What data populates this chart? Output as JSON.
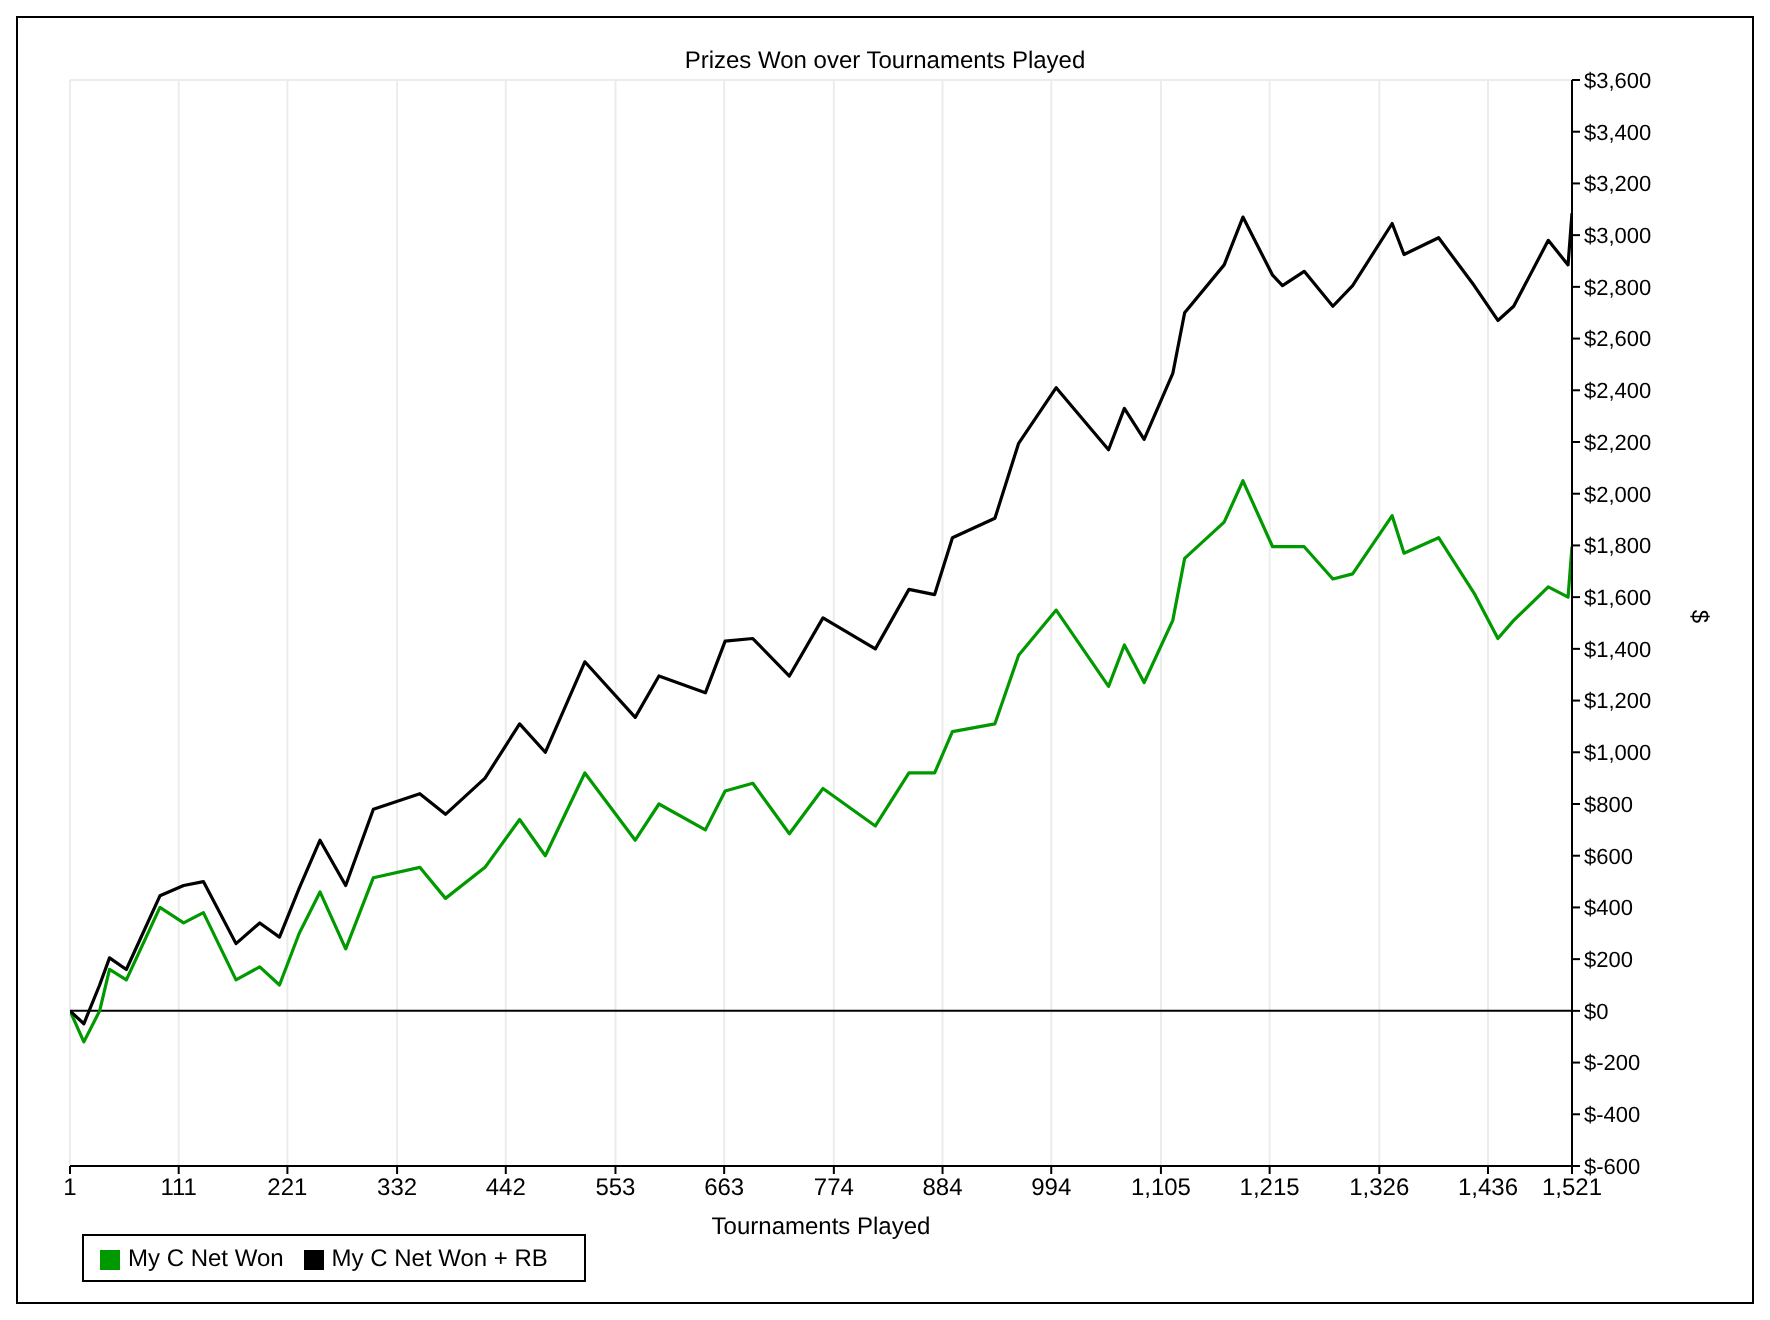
{
  "chart_data": {
    "type": "line",
    "title": "Prizes Won over Tournaments Played",
    "xlabel": "Tournaments Played",
    "ylabel": "$",
    "x": [
      1,
      15,
      31,
      41,
      58,
      92,
      116,
      136,
      169,
      193,
      213,
      233,
      254,
      280,
      308,
      355,
      381,
      421,
      456,
      482,
      522,
      573,
      597,
      644,
      664,
      692,
      729,
      763,
      816,
      850,
      876,
      894,
      937,
      961,
      999,
      1052,
      1068,
      1088,
      1117,
      1129,
      1169,
      1188,
      1218,
      1228,
      1250,
      1279,
      1299,
      1339,
      1351,
      1386,
      1422,
      1446,
      1462,
      1497,
      1517,
      1521
    ],
    "series": [
      {
        "name": "My C Net Won",
        "color": "#009900",
        "values": [
          0,
          -120,
          0,
          160,
          120,
          400,
          340,
          380,
          120,
          170,
          100,
          300,
          460,
          240,
          515,
          555,
          435,
          555,
          740,
          600,
          920,
          660,
          800,
          700,
          850,
          880,
          685,
          860,
          715,
          920,
          920,
          1080,
          1110,
          1375,
          1550,
          1255,
          1415,
          1270,
          1510,
          1750,
          1890,
          2050,
          1795,
          1795,
          1795,
          1670,
          1690,
          1915,
          1770,
          1830,
          1615,
          1440,
          1510,
          1640,
          1600,
          1795
        ]
      },
      {
        "name": "My C Net Won + RB",
        "color": "#000000",
        "values": [
          0,
          -50,
          100,
          205,
          160,
          445,
          485,
          500,
          260,
          340,
          285,
          475,
          660,
          485,
          780,
          840,
          760,
          900,
          1110,
          1000,
          1350,
          1135,
          1295,
          1230,
          1430,
          1440,
          1295,
          1520,
          1400,
          1630,
          1610,
          1830,
          1905,
          2195,
          2410,
          2170,
          2330,
          2210,
          2465,
          2700,
          2885,
          3070,
          2845,
          2805,
          2860,
          2725,
          2805,
          3045,
          2925,
          2990,
          2805,
          2670,
          2725,
          2980,
          2885,
          3085
        ]
      }
    ],
    "xlim": [
      1,
      1521
    ],
    "xticks": [
      1,
      111,
      221,
      332,
      442,
      553,
      663,
      774,
      884,
      994,
      {
        "value": 1105,
        "label": "1,105"
      },
      {
        "value": 1215,
        "label": "1,215"
      },
      {
        "value": 1326,
        "label": "1,326"
      },
      {
        "value": 1436,
        "label": "1,436"
      },
      {
        "value": 1521,
        "label": "1,521"
      }
    ],
    "ylim": [
      -600,
      3600
    ],
    "yticks": [
      {
        "value": -600,
        "label": "$-600"
      },
      {
        "value": -400,
        "label": "$-400"
      },
      {
        "value": -200,
        "label": "$-200"
      },
      {
        "value": 0,
        "label": "$0"
      },
      {
        "value": 200,
        "label": "$200"
      },
      {
        "value": 400,
        "label": "$400"
      },
      {
        "value": 600,
        "label": "$600"
      },
      {
        "value": 800,
        "label": "$800"
      },
      {
        "value": 1000,
        "label": "$1,000"
      },
      {
        "value": 1200,
        "label": "$1,200"
      },
      {
        "value": 1400,
        "label": "$1,400"
      },
      {
        "value": 1600,
        "label": "$1,600"
      },
      {
        "value": 1800,
        "label": "$1,800"
      },
      {
        "value": 2000,
        "label": "$2,000"
      },
      {
        "value": 2200,
        "label": "$2,200"
      },
      {
        "value": 2400,
        "label": "$2,400"
      },
      {
        "value": 2600,
        "label": "$2,600"
      },
      {
        "value": 2800,
        "label": "$2,800"
      },
      {
        "value": 3000,
        "label": "$3,000"
      },
      {
        "value": 3200,
        "label": "$3,200"
      },
      {
        "value": 3400,
        "label": "$3,400"
      },
      {
        "value": 3600,
        "label": "$3,600"
      }
    ],
    "ref_lines": [
      {
        "axis": "y",
        "value": 0,
        "color": "#000000"
      }
    ],
    "grid": true,
    "legend": "bottom left",
    "marker": "none",
    "line_style": "solid"
  }
}
